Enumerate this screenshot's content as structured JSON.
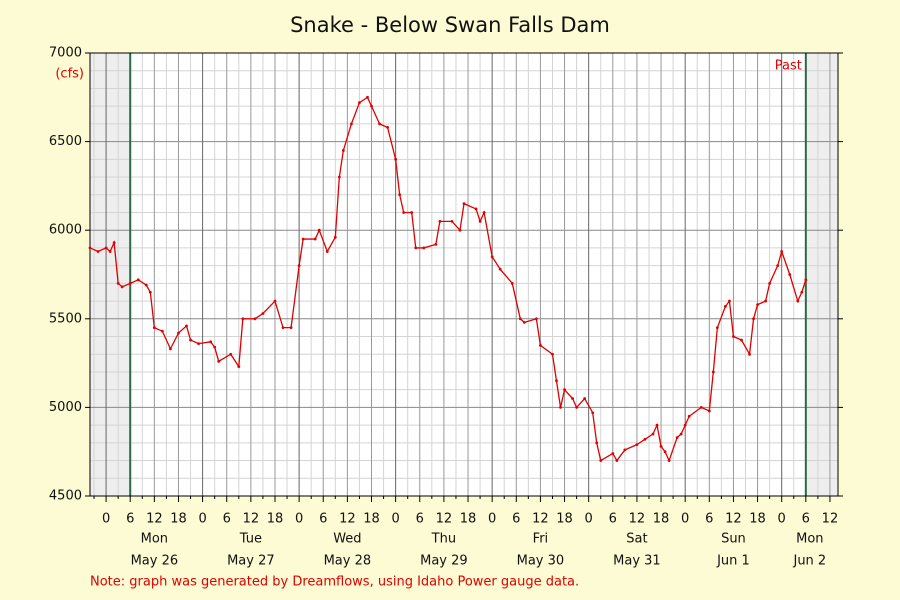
{
  "chart_data": {
    "type": "line",
    "title": "Snake - Below Swan Falls Dam",
    "y_label": "(cfs)",
    "note": "Note: graph was generated by Dreamflows, using Idaho Power gauge data.",
    "past_label": "Past",
    "past_range": [
      6,
      174
    ],
    "xlim": [
      -4,
      182
    ],
    "ylim": [
      4500,
      7000
    ],
    "yticks": [
      4500,
      5000,
      5500,
      6000,
      6500,
      7000
    ],
    "yminorticks": [
      4600,
      4700,
      4800,
      4900,
      5100,
      5200,
      5300,
      5400,
      5600,
      5700,
      5800,
      5900,
      6100,
      6200,
      6300,
      6400,
      6600,
      6700,
      6800,
      6900
    ],
    "xticks": [
      {
        "value": 0,
        "label": "0"
      },
      {
        "value": 6,
        "label": "6"
      },
      {
        "value": 12,
        "label": "12"
      },
      {
        "value": 18,
        "label": "18"
      },
      {
        "value": 24,
        "label": "0"
      },
      {
        "value": 30,
        "label": "6"
      },
      {
        "value": 36,
        "label": "12"
      },
      {
        "value": 42,
        "label": "18"
      },
      {
        "value": 48,
        "label": "0"
      },
      {
        "value": 54,
        "label": "6"
      },
      {
        "value": 60,
        "label": "12"
      },
      {
        "value": 66,
        "label": "18"
      },
      {
        "value": 72,
        "label": "0"
      },
      {
        "value": 78,
        "label": "6"
      },
      {
        "value": 84,
        "label": "12"
      },
      {
        "value": 90,
        "label": "18"
      },
      {
        "value": 96,
        "label": "0"
      },
      {
        "value": 102,
        "label": "6"
      },
      {
        "value": 108,
        "label": "12"
      },
      {
        "value": 114,
        "label": "18"
      },
      {
        "value": 120,
        "label": "0"
      },
      {
        "value": 126,
        "label": "6"
      },
      {
        "value": 132,
        "label": "12"
      },
      {
        "value": 138,
        "label": "18"
      },
      {
        "value": 144,
        "label": "0"
      },
      {
        "value": 150,
        "label": "6"
      },
      {
        "value": 156,
        "label": "12"
      },
      {
        "value": 162,
        "label": "18"
      },
      {
        "value": 168,
        "label": "0"
      },
      {
        "value": 174,
        "label": "6"
      },
      {
        "value": 180,
        "label": "12"
      }
    ],
    "xminorticks": [
      -3,
      3,
      9,
      15,
      21,
      27,
      33,
      39,
      45,
      51,
      57,
      63,
      69,
      75,
      81,
      87,
      93,
      99,
      105,
      111,
      117,
      123,
      129,
      135,
      141,
      147,
      153,
      159,
      165,
      171,
      177
    ],
    "day_labels": [
      {
        "value": 12,
        "weekday": "Mon",
        "date": "May 26"
      },
      {
        "value": 36,
        "weekday": "Tue",
        "date": "May 27"
      },
      {
        "value": 60,
        "weekday": "Wed",
        "date": "May 28"
      },
      {
        "value": 84,
        "weekday": "Thu",
        "date": "May 29"
      },
      {
        "value": 108,
        "weekday": "Fri",
        "date": "May 30"
      },
      {
        "value": 132,
        "weekday": "Sat",
        "date": "May 31"
      },
      {
        "value": 156,
        "weekday": "Sun",
        "date": "Jun 1"
      },
      {
        "value": 175,
        "weekday": "Mon",
        "date": "Jun 2"
      }
    ],
    "grid": true,
    "color": "#e00000",
    "x": [
      -4,
      -2,
      0,
      1,
      2,
      3,
      4,
      6,
      8,
      10,
      11,
      12,
      14,
      16,
      18,
      20,
      21,
      23,
      26,
      27,
      28,
      31,
      33,
      34,
      37,
      39,
      42,
      44,
      46,
      48,
      49,
      52,
      53,
      55,
      57,
      58,
      59,
      61,
      63,
      65,
      66,
      68,
      70,
      72,
      73,
      74,
      76,
      77,
      79,
      82,
      83,
      86,
      88,
      89,
      92,
      93,
      94,
      96,
      98,
      101,
      103,
      104,
      107,
      108,
      111,
      112,
      113,
      114,
      116,
      117,
      119,
      121,
      122,
      123,
      126,
      127,
      129,
      132,
      134,
      136,
      137,
      138,
      139,
      140,
      142,
      143,
      144,
      145,
      148,
      150,
      151,
      152,
      154,
      155,
      156,
      158,
      160,
      161,
      162,
      164,
      165,
      167,
      168,
      170,
      172,
      173,
      174
    ],
    "values": [
      5900,
      5880,
      5900,
      5880,
      5930,
      5700,
      5680,
      5700,
      5720,
      5690,
      5650,
      5450,
      5430,
      5330,
      5420,
      5460,
      5380,
      5360,
      5370,
      5340,
      5260,
      5300,
      5230,
      5500,
      5500,
      5530,
      5600,
      5450,
      5450,
      5800,
      5950,
      5950,
      6000,
      5880,
      5960,
      6300,
      6450,
      6600,
      6720,
      6750,
      6700,
      6600,
      6580,
      6400,
      6200,
      6100,
      6100,
      5900,
      5900,
      5920,
      6050,
      6050,
      6000,
      6150,
      6120,
      6050,
      6100,
      5850,
      5780,
      5700,
      5500,
      5480,
      5500,
      5350,
      5300,
      5150,
      5000,
      5100,
      5050,
      5000,
      5050,
      4970,
      4800,
      4700,
      4740,
      4700,
      4760,
      4790,
      4820,
      4850,
      4900,
      4780,
      4750,
      4700,
      4830,
      4850,
      4900,
      4950,
      5000,
      4980,
      5200,
      5450,
      5570,
      5600,
      5400,
      5380,
      5300,
      5500,
      5580,
      5600,
      5700,
      5800,
      5880,
      5750,
      5600,
      5650,
      5720
    ]
  }
}
